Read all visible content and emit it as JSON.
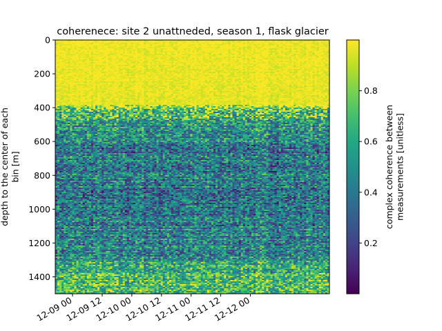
{
  "chart_data": {
    "type": "heatmap",
    "title": "coherenece: site 2 unattneded, season 1, flask glacier",
    "ylabel_lines": [
      "depth to the center of each",
      "bin [m]"
    ],
    "colorbar_label_lines": [
      "complex coherence between",
      "measurements [unitless]"
    ],
    "colormap": "viridis",
    "y_range": [
      0,
      1500
    ],
    "y_ticks": [
      0,
      200,
      400,
      600,
      800,
      1000,
      1200,
      1400
    ],
    "y_inverted": true,
    "x_range": [
      "12-08 17:00",
      "12-13 08:00"
    ],
    "x_ticks": [
      {
        "label": "12-09 00",
        "hours": 7
      },
      {
        "label": "12-09 12",
        "hours": 19
      },
      {
        "label": "12-10 00",
        "hours": 31
      },
      {
        "label": "12-10 12",
        "hours": 43
      },
      {
        "label": "12-11 00",
        "hours": 55
      },
      {
        "label": "12-11 12",
        "hours": 67
      },
      {
        "label": "12-12 00",
        "hours": 79
      }
    ],
    "x_span_hours": 111,
    "c_range": [
      0.0,
      1.0
    ],
    "colorbar_ticks": [
      0.2,
      0.4,
      0.6,
      0.8
    ],
    "depth_profile": [
      {
        "depth": 0,
        "mean": 0.98
      },
      {
        "depth": 380,
        "mean": 0.96
      },
      {
        "depth": 400,
        "mean": 0.78
      },
      {
        "depth": 470,
        "mean": 0.58
      },
      {
        "depth": 600,
        "mean": 0.42
      },
      {
        "depth": 1000,
        "mean": 0.4
      },
      {
        "depth": 1250,
        "mean": 0.45
      },
      {
        "depth": 1330,
        "mean": 0.6
      },
      {
        "depth": 1500,
        "mean": 0.72
      }
    ],
    "grid": false,
    "legend": "none"
  }
}
